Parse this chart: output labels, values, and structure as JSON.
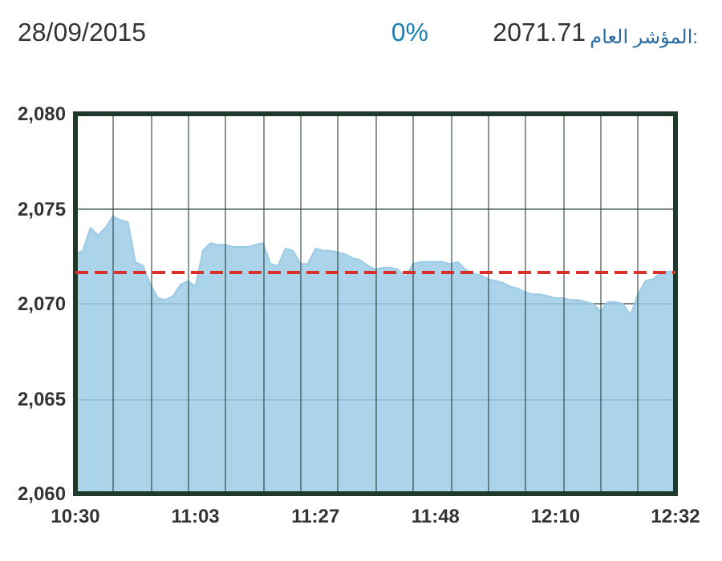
{
  "chart_data": {
    "type": "area",
    "title": "28/09/2015",
    "annotations": [
      "0%",
      "2071.71",
      "المؤشر العام:"
    ],
    "categories": [
      "10:30",
      null,
      null,
      null,
      null,
      null,
      null,
      null,
      null,
      null,
      null,
      null,
      null,
      null,
      null,
      null,
      "11:03",
      null,
      null,
      null,
      null,
      null,
      null,
      null,
      null,
      null,
      null,
      null,
      null,
      null,
      null,
      null,
      "11:27",
      null,
      null,
      null,
      null,
      null,
      null,
      null,
      null,
      null,
      null,
      null,
      null,
      null,
      null,
      null,
      "11:48",
      null,
      null,
      null,
      null,
      null,
      null,
      null,
      null,
      null,
      null,
      null,
      null,
      null,
      null,
      null,
      "12:10",
      null,
      null,
      null,
      null,
      null,
      null,
      null,
      null,
      null,
      null,
      null,
      null,
      null,
      null,
      null,
      "12:32"
    ],
    "series": [
      {
        "color": "#9ccbe6",
        "values": [
          2072.6,
          2072.8,
          2074.0,
          2073.6,
          2074.0,
          2074.6,
          2074.4,
          2074.3,
          2072.2,
          2072.0,
          2071.0,
          2070.3,
          2070.2,
          2070.4,
          2071.0,
          2071.2,
          2070.9,
          2072.8,
          2073.2,
          2073.1,
          2073.1,
          2073.0,
          2073.0,
          2073.0,
          2073.1,
          2073.2,
          2072.1,
          2072.0,
          2072.9,
          2072.8,
          2072.1,
          2072.1,
          2072.9,
          2072.8,
          2072.8,
          2072.7,
          2072.6,
          2072.4,
          2072.3,
          2072.0,
          2071.8,
          2071.9,
          2071.9,
          2071.8,
          2071.4,
          2072.1,
          2072.2,
          2072.2,
          2072.2,
          2072.2,
          2072.1,
          2072.2,
          2071.8,
          2071.6,
          2071.5,
          2071.3,
          2071.2,
          2071.1,
          2070.9,
          2070.8,
          2070.6,
          2070.5,
          2070.5,
          2070.4,
          2070.3,
          2070.3,
          2070.2,
          2070.2,
          2070.1,
          2070.0,
          2069.6,
          2070.1,
          2070.1,
          2070.0,
          2069.4,
          2070.5,
          2071.2,
          2071.3,
          2071.6,
          2071.7,
          2071.7
        ]
      }
    ],
    "ylim": [
      2060,
      2080
    ],
    "yticks": [
      {
        "value": 2060,
        "label": "2,060"
      },
      {
        "value": 2065,
        "label": "2,065"
      },
      {
        "value": 2070,
        "label": "2,070"
      },
      {
        "value": 2075,
        "label": "2,075"
      },
      {
        "value": 2080,
        "label": "2,080"
      }
    ],
    "ref_lines": [
      {
        "axis": "y",
        "value": 2071.7,
        "color": "#d9302a",
        "line_style": "dashed"
      }
    ],
    "grid": true,
    "marker": "none"
  }
}
